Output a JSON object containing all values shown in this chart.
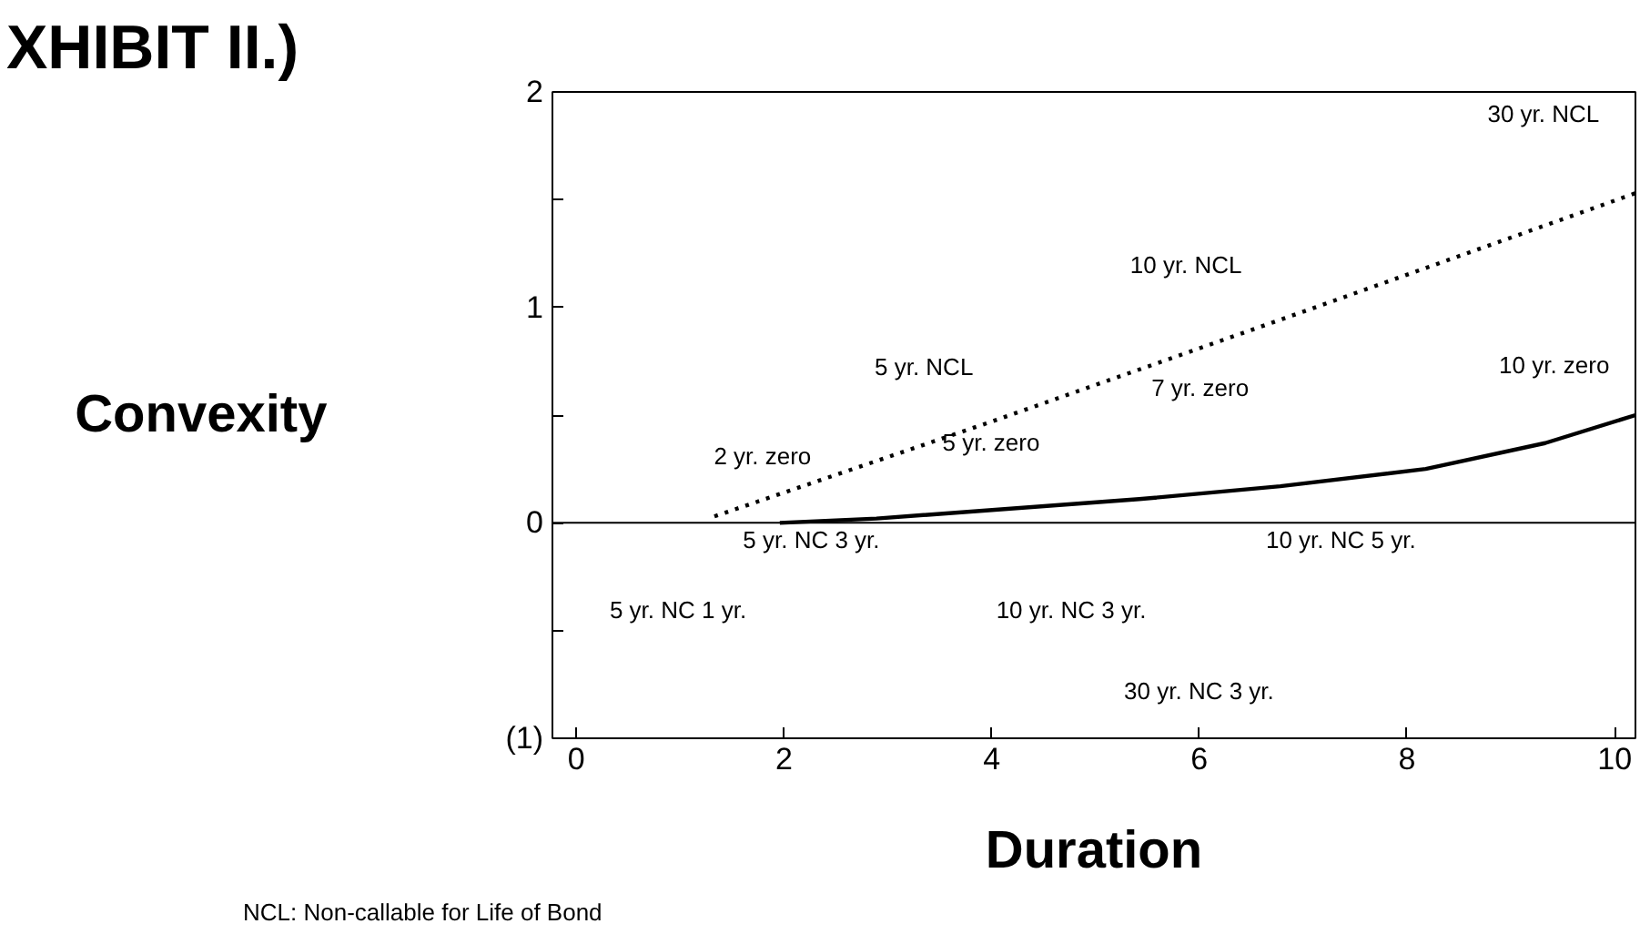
{
  "chart_data": {
    "type": "line",
    "title": "XHIBIT II.)",
    "xlabel": "Duration",
    "ylabel": "Convexity",
    "xlim": [
      -0.23,
      10.2
    ],
    "ylim": [
      -1,
      2
    ],
    "xticks": [
      0,
      2,
      4,
      6,
      8,
      10
    ],
    "yticks": [
      {
        "value": -1,
        "label": "(1)"
      },
      {
        "value": -0.5,
        "label": null
      },
      0,
      {
        "value": 0.5,
        "label": null
      },
      1,
      {
        "value": 1.5,
        "label": null
      },
      2
    ],
    "grid": false,
    "ref_lines": [
      {
        "axis": "y",
        "value": 0,
        "color": "#000000",
        "line_style": "solid"
      }
    ],
    "series": [
      {
        "color": "#000000",
        "line_style": "dotted",
        "x": [
          1.33,
          4,
          7,
          10.2
        ],
        "values": [
          0.03,
          0.47,
          0.98,
          1.53
        ]
      },
      {
        "color": "#000000",
        "line_style": "solid",
        "x": [
          1.96,
          2.89,
          5.42,
          6.78,
          8.18,
          9.33,
          10.2
        ],
        "values": [
          0,
          0.02,
          0.11,
          0.17,
          0.25,
          0.37,
          0.5
        ]
      }
    ],
    "annotations": [
      "30 yr. NCL",
      "10 yr. NCL",
      "5 yr. NCL",
      "7 yr. zero",
      "10 yr. zero",
      "5 yr. zero",
      "2 yr. zero",
      "5 yr. NC 3 yr.",
      "10 yr. NC 5 yr.",
      "5 yr. NC 1 yr.",
      "10 yr. NC 3 yr.",
      "30 yr. NC 3 yr.",
      "NCL: Non-callable for Life of Bond"
    ]
  }
}
